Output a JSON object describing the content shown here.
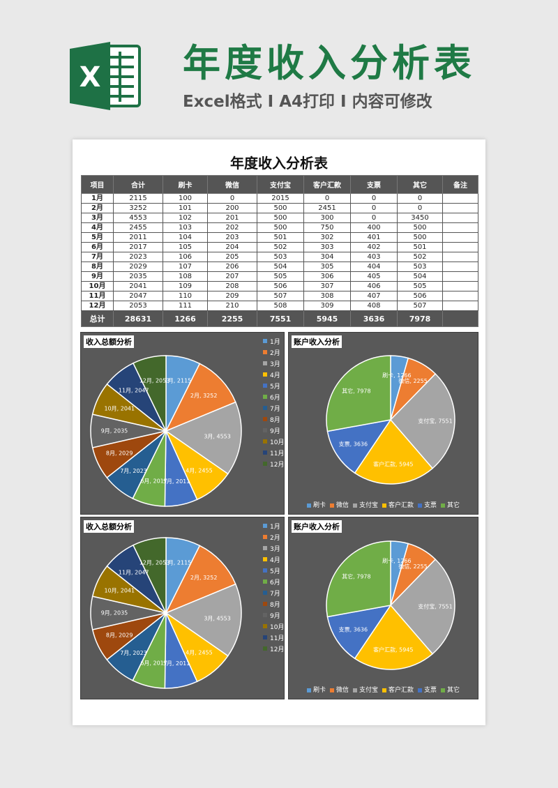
{
  "header": {
    "logo_letter": "X",
    "title": "年度收入分析表",
    "subtitle": "Excel格式 I A4打印 I 内容可修改"
  },
  "document": {
    "title": "年度收入分析表",
    "columns": [
      "项目",
      "合计",
      "刷卡",
      "微信",
      "支付宝",
      "客户汇款",
      "支票",
      "其它",
      "备注"
    ],
    "rows": [
      [
        "1月",
        "2115",
        "100",
        "0",
        "2015",
        "0",
        "0",
        "0",
        ""
      ],
      [
        "2月",
        "3252",
        "101",
        "200",
        "500",
        "2451",
        "0",
        "0",
        ""
      ],
      [
        "3月",
        "4553",
        "102",
        "201",
        "500",
        "300",
        "0",
        "3450",
        ""
      ],
      [
        "4月",
        "2455",
        "103",
        "202",
        "500",
        "750",
        "400",
        "500",
        ""
      ],
      [
        "5月",
        "2011",
        "104",
        "203",
        "501",
        "302",
        "401",
        "500",
        ""
      ],
      [
        "6月",
        "2017",
        "105",
        "204",
        "502",
        "303",
        "402",
        "501",
        ""
      ],
      [
        "7月",
        "2023",
        "106",
        "205",
        "503",
        "304",
        "403",
        "502",
        ""
      ],
      [
        "8月",
        "2029",
        "107",
        "206",
        "504",
        "305",
        "404",
        "503",
        ""
      ],
      [
        "9月",
        "2035",
        "108",
        "207",
        "505",
        "306",
        "405",
        "504",
        ""
      ],
      [
        "10月",
        "2041",
        "109",
        "208",
        "506",
        "307",
        "406",
        "505",
        ""
      ],
      [
        "11月",
        "2047",
        "110",
        "209",
        "507",
        "308",
        "407",
        "506",
        ""
      ],
      [
        "12月",
        "2053",
        "111",
        "210",
        "508",
        "309",
        "408",
        "507",
        ""
      ]
    ],
    "total": [
      "总计",
      "28631",
      "1266",
      "2255",
      "7551",
      "5945",
      "3636",
      "7978",
      ""
    ]
  },
  "chart_titles": {
    "monthly": "收入总额分析",
    "account": "账户收入分析"
  },
  "chart_data": [
    {
      "type": "pie",
      "title": "收入总额分析",
      "categories": [
        "1月",
        "2月",
        "3月",
        "4月",
        "5月",
        "6月",
        "7月",
        "8月",
        "9月",
        "10月",
        "11月",
        "12月"
      ],
      "values": [
        2115,
        3252,
        4553,
        2455,
        2011,
        2017,
        2023,
        2029,
        2035,
        2041,
        2047,
        2053
      ],
      "colors": [
        "#5b9bd5",
        "#ed7d31",
        "#a5a5a5",
        "#ffc000",
        "#4472c4",
        "#70ad47",
        "#255e91",
        "#9e480e",
        "#636363",
        "#997300",
        "#264478",
        "#43682b"
      ],
      "legend": "right"
    },
    {
      "type": "pie",
      "title": "账户收入分析",
      "categories": [
        "刷卡",
        "微信",
        "支付宝",
        "客户汇款",
        "支票",
        "其它"
      ],
      "values": [
        1266,
        2255,
        7551,
        5945,
        3636,
        7978
      ],
      "colors": [
        "#5b9bd5",
        "#ed7d31",
        "#a5a5a5",
        "#ffc000",
        "#4472c4",
        "#70ad47"
      ],
      "legend": "bottom"
    },
    {
      "type": "pie",
      "title": "收入总额分析",
      "categories": [
        "1月",
        "2月",
        "3月",
        "4月",
        "5月",
        "6月",
        "7月",
        "8月",
        "9月",
        "10月",
        "11月",
        "12月"
      ],
      "values": [
        2115,
        3252,
        4553,
        2455,
        2011,
        2017,
        2023,
        2029,
        2035,
        2041,
        2047,
        2053
      ],
      "colors": [
        "#5b9bd5",
        "#ed7d31",
        "#a5a5a5",
        "#ffc000",
        "#4472c4",
        "#70ad47",
        "#255e91",
        "#9e480e",
        "#636363",
        "#997300",
        "#264478",
        "#43682b"
      ],
      "legend": "right"
    },
    {
      "type": "pie",
      "title": "账户收入分析",
      "categories": [
        "刷卡",
        "微信",
        "支付宝",
        "客户汇款",
        "支票",
        "其它"
      ],
      "values": [
        1266,
        2255,
        7551,
        5945,
        3636,
        7978
      ],
      "colors": [
        "#5b9bd5",
        "#ed7d31",
        "#a5a5a5",
        "#ffc000",
        "#4472c4",
        "#70ad47"
      ],
      "legend": "bottom"
    }
  ]
}
